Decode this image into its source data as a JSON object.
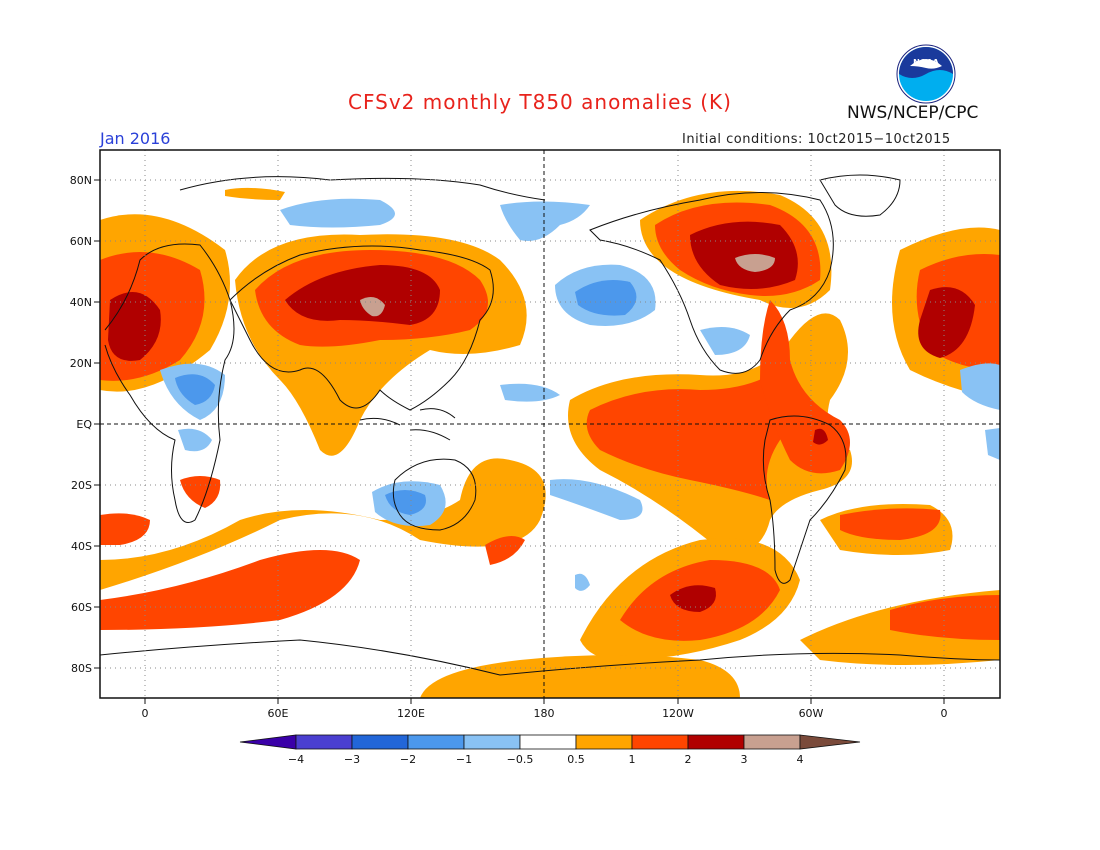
{
  "header": {
    "title": "CFSv2 monthly T850 anomalies (K)",
    "period": "Jan 2016",
    "initial_conditions": "Initial conditions: 10ct2015−10ct2015",
    "agency": "NWS/NCEP/CPC",
    "logo_text": "NOAA"
  },
  "map": {
    "lat_labels": [
      "80N",
      "60N",
      "40N",
      "20N",
      "EQ",
      "20S",
      "40S",
      "60S",
      "80S"
    ],
    "lon_labels": [
      "0",
      "60E",
      "120E",
      "180",
      "120W",
      "60W",
      "0"
    ]
  },
  "legend": {
    "ticks": [
      "−4",
      "−3",
      "−2",
      "−1",
      "−0.5",
      "0.5",
      "1",
      "2",
      "3",
      "4"
    ],
    "colors": [
      "#3a00a8",
      "#4a3fd0",
      "#2266d8",
      "#4c98ec",
      "#89c2f4",
      "#ffffff",
      "#ffa500",
      "#ff4500",
      "#b00000",
      "#c8a090",
      "#7a4a3a"
    ]
  },
  "colors": {
    "title": "#e8231c",
    "period": "#2a40d8",
    "anomaly_1": "#ffa500",
    "anomaly_2": "#ff4500",
    "anomaly_3": "#b00000",
    "anomaly_4": "#c8a090",
    "anomaly_neg1": "#4c98ec",
    "anomaly_neg05": "#89c2f4"
  }
}
